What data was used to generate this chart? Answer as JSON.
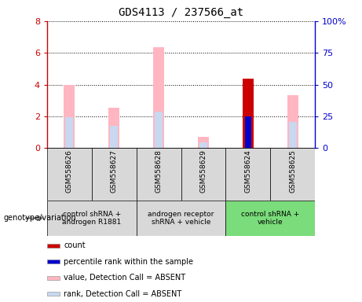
{
  "title": "GDS4113 / 237566_at",
  "samples": [
    "GSM558626",
    "GSM558627",
    "GSM558628",
    "GSM558629",
    "GSM558624",
    "GSM558625"
  ],
  "groups": [
    {
      "label": "control shRNA +\nandrogen R1881",
      "start": 0,
      "end": 1,
      "color": "#d8d8d8"
    },
    {
      "label": "androgen receptor\nshRNA + vehicle",
      "start": 2,
      "end": 3,
      "color": "#d8d8d8"
    },
    {
      "label": "control shRNA +\nvehicle",
      "start": 4,
      "end": 5,
      "color": "#7adc7a"
    }
  ],
  "pink_values": [
    4.0,
    2.55,
    6.35,
    0.7,
    0.0,
    3.35
  ],
  "blue_values": [
    1.95,
    1.4,
    2.3,
    0.35,
    0.0,
    1.65
  ],
  "red_values": [
    0.0,
    0.0,
    0.0,
    0.0,
    4.35,
    0.0
  ],
  "blue_dot_values": [
    0.0,
    0.0,
    0.0,
    0.0,
    2.0,
    0.0
  ],
  "ylim_left": [
    0,
    8
  ],
  "ylim_right": [
    0,
    100
  ],
  "yticks_left": [
    0,
    2,
    4,
    6,
    8
  ],
  "yticks_right": [
    0,
    25,
    50,
    75,
    100
  ],
  "ytick_labels_left": [
    "0",
    "2",
    "4",
    "6",
    "8"
  ],
  "ytick_labels_right": [
    "0",
    "25",
    "50",
    "75",
    "100%"
  ],
  "left_axis_color": "#cc0000",
  "right_axis_color": "#0000cc",
  "bar_width": 0.25,
  "sample_box_color": "#d8d8d8",
  "legend_items": [
    {
      "color": "#cc0000",
      "label": "count"
    },
    {
      "color": "#0000cc",
      "label": "percentile rank within the sample"
    },
    {
      "color": "#ffb6c1",
      "label": "value, Detection Call = ABSENT"
    },
    {
      "color": "#c8d8f0",
      "label": "rank, Detection Call = ABSENT"
    }
  ]
}
